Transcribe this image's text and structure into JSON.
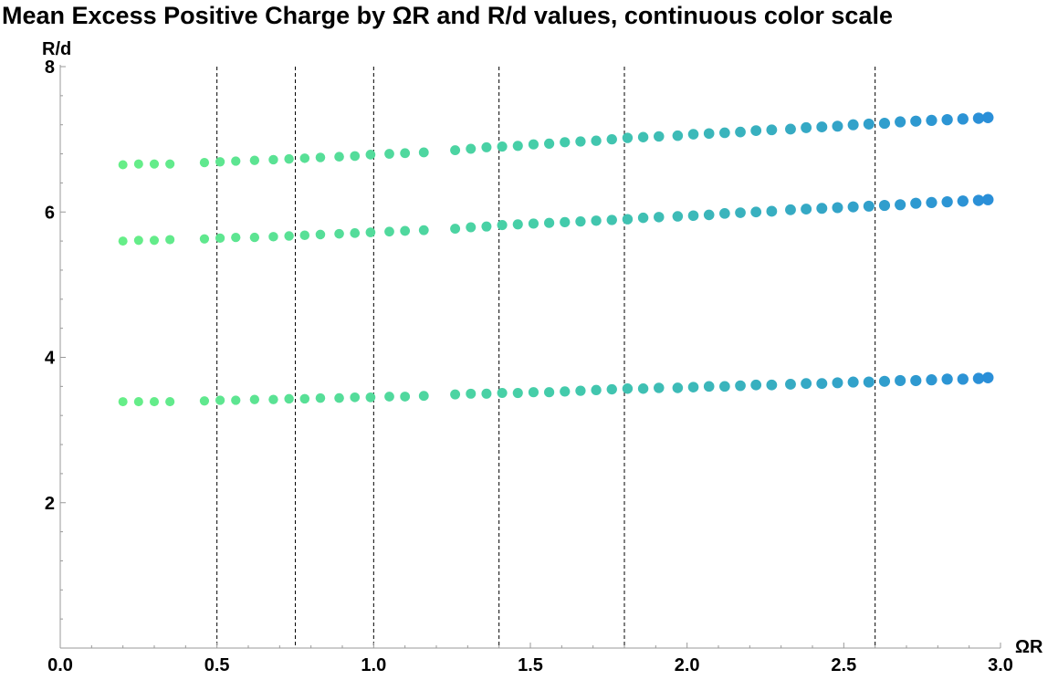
{
  "chart_data": {
    "type": "scatter",
    "title": "Mean Excess Positive Charge by ΩR and R/d values, continuous color scale",
    "xlabel": "ΩR",
    "ylabel": "R/d",
    "xlim": [
      0,
      3.0
    ],
    "ylim": [
      0,
      8
    ],
    "x_ticks": [
      "0.0",
      "0.5",
      "1.0",
      "1.5",
      "2.0",
      "2.5",
      "3.0"
    ],
    "x_tick_values": [
      0,
      0.5,
      1.0,
      1.5,
      2.0,
      2.5,
      3.0
    ],
    "y_ticks": [
      "2",
      "4",
      "6",
      "8"
    ],
    "y_tick_values": [
      2,
      4,
      6,
      8
    ],
    "vertical_reference_lines": [
      0.5,
      0.75,
      1.0,
      1.4,
      1.8,
      2.6
    ],
    "grid": false,
    "color_scale": {
      "low": "#66ee88",
      "mid": "#44ccaa",
      "high": "#2a8fd8"
    },
    "series": [
      {
        "x": [
          0.2,
          0.25,
          0.3,
          0.35,
          0.46,
          0.51,
          0.56,
          0.62,
          0.68,
          0.73,
          0.78,
          0.83,
          0.89,
          0.94,
          0.99,
          1.05,
          1.1,
          1.16,
          1.26,
          1.31,
          1.36,
          1.41,
          1.46,
          1.51,
          1.56,
          1.61,
          1.66,
          1.71,
          1.76,
          1.81,
          1.86,
          1.91,
          1.97,
          2.02,
          2.07,
          2.12,
          2.17,
          2.22,
          2.27,
          2.33,
          2.38,
          2.43,
          2.48,
          2.53,
          2.58,
          2.63,
          2.68,
          2.73,
          2.78,
          2.83,
          2.88,
          2.93,
          2.96
        ],
        "y": [
          3.39,
          3.39,
          3.39,
          3.39,
          3.4,
          3.41,
          3.41,
          3.42,
          3.42,
          3.43,
          3.43,
          3.44,
          3.44,
          3.45,
          3.45,
          3.46,
          3.46,
          3.47,
          3.49,
          3.5,
          3.5,
          3.51,
          3.51,
          3.52,
          3.52,
          3.53,
          3.54,
          3.55,
          3.56,
          3.57,
          3.57,
          3.58,
          3.58,
          3.59,
          3.6,
          3.6,
          3.61,
          3.62,
          3.62,
          3.63,
          3.64,
          3.64,
          3.65,
          3.66,
          3.66,
          3.67,
          3.68,
          3.68,
          3.69,
          3.7,
          3.7,
          3.71,
          3.72
        ]
      },
      {
        "x": [
          0.2,
          0.25,
          0.3,
          0.35,
          0.46,
          0.51,
          0.56,
          0.62,
          0.68,
          0.73,
          0.78,
          0.83,
          0.89,
          0.94,
          0.99,
          1.05,
          1.1,
          1.16,
          1.26,
          1.31,
          1.36,
          1.41,
          1.46,
          1.51,
          1.56,
          1.61,
          1.66,
          1.71,
          1.76,
          1.81,
          1.86,
          1.91,
          1.97,
          2.02,
          2.07,
          2.12,
          2.17,
          2.22,
          2.27,
          2.33,
          2.38,
          2.43,
          2.48,
          2.53,
          2.58,
          2.63,
          2.68,
          2.73,
          2.78,
          2.83,
          2.88,
          2.93,
          2.96
        ],
        "y": [
          5.6,
          5.61,
          5.61,
          5.62,
          5.63,
          5.64,
          5.65,
          5.65,
          5.66,
          5.67,
          5.68,
          5.69,
          5.7,
          5.71,
          5.72,
          5.73,
          5.74,
          5.75,
          5.77,
          5.79,
          5.8,
          5.82,
          5.83,
          5.84,
          5.85,
          5.86,
          5.87,
          5.88,
          5.89,
          5.9,
          5.92,
          5.93,
          5.94,
          5.95,
          5.96,
          5.98,
          5.99,
          6.0,
          6.01,
          6.03,
          6.04,
          6.05,
          6.06,
          6.07,
          6.08,
          6.09,
          6.1,
          6.12,
          6.13,
          6.14,
          6.15,
          6.16,
          6.17
        ]
      },
      {
        "x": [
          0.2,
          0.25,
          0.3,
          0.35,
          0.46,
          0.51,
          0.56,
          0.62,
          0.68,
          0.73,
          0.78,
          0.83,
          0.89,
          0.94,
          0.99,
          1.05,
          1.1,
          1.16,
          1.26,
          1.31,
          1.36,
          1.41,
          1.46,
          1.51,
          1.56,
          1.61,
          1.66,
          1.71,
          1.76,
          1.81,
          1.86,
          1.91,
          1.97,
          2.02,
          2.07,
          2.12,
          2.17,
          2.22,
          2.27,
          2.33,
          2.38,
          2.43,
          2.48,
          2.53,
          2.58,
          2.63,
          2.68,
          2.73,
          2.78,
          2.83,
          2.88,
          2.93,
          2.96
        ],
        "y": [
          6.65,
          6.66,
          6.66,
          6.66,
          6.68,
          6.69,
          6.7,
          6.71,
          6.72,
          6.73,
          6.74,
          6.75,
          6.76,
          6.77,
          6.79,
          6.8,
          6.81,
          6.82,
          6.85,
          6.87,
          6.89,
          6.9,
          6.91,
          6.93,
          6.94,
          6.96,
          6.97,
          6.98,
          7.0,
          7.02,
          7.03,
          7.04,
          7.05,
          7.07,
          7.08,
          7.09,
          7.1,
          7.12,
          7.13,
          7.14,
          7.16,
          7.17,
          7.18,
          7.2,
          7.21,
          7.22,
          7.24,
          7.25,
          7.26,
          7.27,
          7.28,
          7.29,
          7.3
        ]
      }
    ]
  }
}
